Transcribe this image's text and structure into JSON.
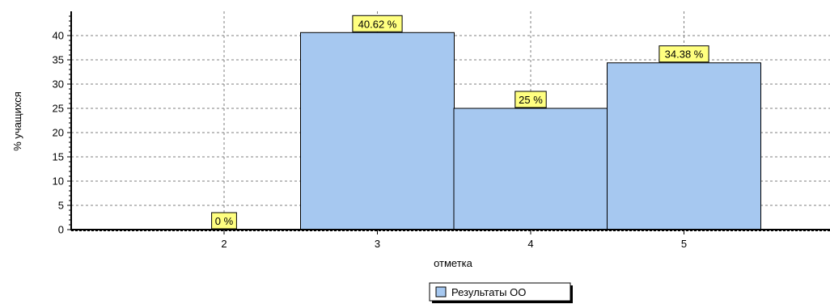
{
  "chart_data": {
    "type": "bar",
    "categories": [
      "2",
      "3",
      "4",
      "5"
    ],
    "series": [
      {
        "name": "Результаты ОО",
        "values": [
          0,
          40.62,
          25,
          34.38
        ]
      }
    ],
    "data_labels": [
      "0 %",
      "40.62 %",
      "25 %",
      "34.38 %"
    ],
    "xlabel": "отметка",
    "ylabel": "% учащихся",
    "ylim": [
      0,
      45
    ],
    "yticks": [
      0,
      5,
      10,
      15,
      20,
      25,
      30,
      35,
      40
    ],
    "grid": true,
    "legend_position": "bottom-center",
    "colors": {
      "bar_fill": "#A6C8F0",
      "bar_stroke": "#000000",
      "label_fill": "#FFFF80",
      "grid": "#7F7F7F"
    }
  }
}
